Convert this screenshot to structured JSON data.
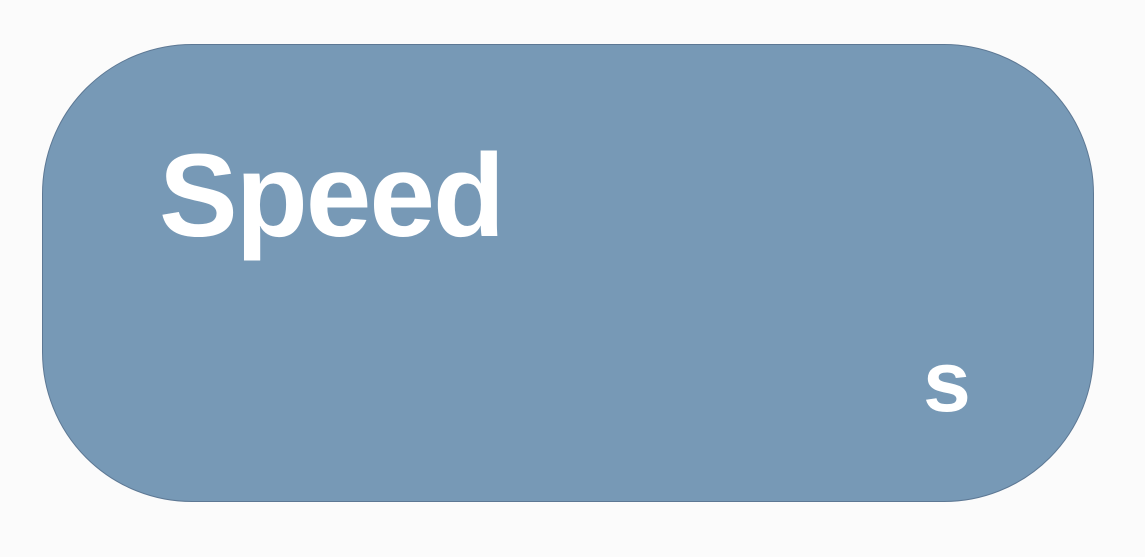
{
  "card": {
    "title": "Speed",
    "unit": "s"
  },
  "colors": {
    "background": "#fbfbfb",
    "card_fill": "#7799b6",
    "card_border": "#5d7894",
    "text": "#ffffff"
  }
}
